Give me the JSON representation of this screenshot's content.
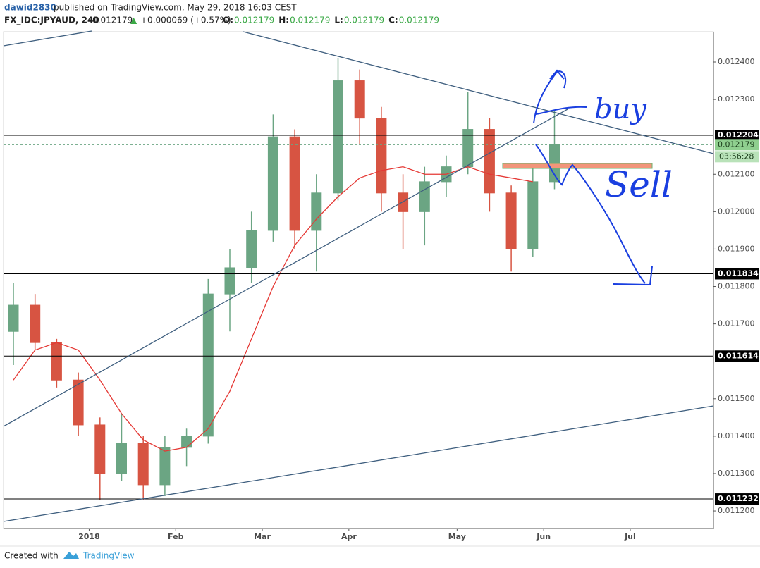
{
  "header": {
    "author": "dawid2830",
    "published": "published on TradingView.com, May 29, 2018 16:03 CEST",
    "symbol": "FX_IDC:JPYAUD, 240",
    "price": "0.012179",
    "arrow": "▲",
    "change": "+0.000069 (+0.57%)",
    "ohlc": [
      {
        "label": "O:",
        "value": "0.012179"
      },
      {
        "label": "H:",
        "value": "0.012179"
      },
      {
        "label": "L:",
        "value": "0.012179"
      },
      {
        "label": "C:",
        "value": "0.012179"
      }
    ]
  },
  "footer": {
    "created": "Created with",
    "brand": "TradingView"
  },
  "chart_data": {
    "type": "candlestick",
    "categories": [
      null,
      null,
      null,
      null,
      "2018",
      null,
      null,
      null,
      "Feb",
      null,
      null,
      null,
      "Mar",
      null,
      null,
      null,
      "Apr",
      null,
      null,
      null,
      null,
      "May",
      null,
      null,
      null,
      "Jun",
      null,
      null,
      null,
      "Jul",
      null,
      null
    ],
    "open": [
      0.01168,
      0.01175,
      0.01165,
      0.01155,
      0.01143,
      0.0113,
      0.01138,
      0.01127,
      0.01137,
      0.0114,
      0.01178,
      0.01185,
      0.01195,
      0.0122,
      0.01195,
      0.01205,
      0.01235,
      0.01225,
      0.01205,
      0.012,
      0.01208,
      0.01212,
      0.01222,
      0.01205,
      0.0119,
      0.01208,
      null,
      null,
      null,
      null,
      null,
      null
    ],
    "high": [
      0.01181,
      0.01178,
      0.01166,
      0.01157,
      0.01145,
      0.01146,
      0.0114,
      0.0114,
      0.01142,
      0.01182,
      0.0119,
      0.012,
      0.01226,
      0.01222,
      0.0121,
      0.01241,
      0.01238,
      0.01228,
      0.0121,
      0.01212,
      0.01215,
      0.01232,
      0.01225,
      0.01207,
      0.01213,
      0.01227,
      null,
      null,
      null,
      null,
      null,
      null
    ],
    "low": [
      0.01159,
      0.01163,
      0.01153,
      0.0114,
      0.01123,
      0.01128,
      0.01123,
      0.01124,
      0.01132,
      0.01138,
      0.01168,
      0.01181,
      0.01192,
      0.0119,
      0.01184,
      0.01203,
      0.01218,
      0.012,
      0.0119,
      0.01191,
      0.01204,
      0.0121,
      0.012,
      0.01184,
      0.01188,
      0.01206,
      null,
      null,
      null,
      null,
      null,
      null
    ],
    "close": [
      0.01175,
      0.01165,
      0.01155,
      0.01143,
      0.0113,
      0.01138,
      0.01127,
      0.01137,
      0.0114,
      0.01178,
      0.01185,
      0.01195,
      0.0122,
      0.01195,
      0.01205,
      0.01235,
      0.01225,
      0.01205,
      0.012,
      0.01208,
      0.01212,
      0.01222,
      0.01205,
      0.0119,
      0.01208,
      0.012179,
      null,
      null,
      null,
      null,
      null,
      null
    ],
    "moving_average": {
      "color": "#e53935",
      "values": [
        0.01155,
        0.01163,
        0.01165,
        0.01163,
        0.01155,
        0.01146,
        0.01139,
        0.01136,
        0.01137,
        0.01142,
        0.01152,
        0.01166,
        0.0118,
        0.01191,
        0.01198,
        0.01204,
        0.01209,
        0.01211,
        0.01212,
        0.0121,
        0.0121,
        0.01212,
        0.0121,
        0.01209,
        0.01208,
        null,
        null,
        null,
        null,
        null,
        null,
        null
      ]
    },
    "up_color": "#6ba583",
    "down_color": "#d75442",
    "ylim": [
      0.011153,
      0.012481
    ],
    "yticks": [
      {
        "value": 0.0112,
        "label": "0.011200"
      },
      {
        "value": 0.0113,
        "label": "0.011300"
      },
      {
        "value": 0.0114,
        "label": "0.011400"
      },
      {
        "value": 0.0115,
        "label": "0.011500"
      },
      {
        "value": 0.0117,
        "label": "0.011700"
      },
      {
        "value": 0.0118,
        "label": "0.011800"
      },
      {
        "value": 0.0119,
        "label": "0.011900"
      },
      {
        "value": 0.012,
        "label": "0.012000"
      },
      {
        "value": 0.0121,
        "label": "0.012100"
      },
      {
        "value": 0.0123,
        "label": "0.012300"
      },
      {
        "value": 0.0124,
        "label": "0.012400"
      }
    ],
    "horizontal_lines": [
      0.012204,
      0.011834,
      0.011614,
      0.011232
    ],
    "last_price": 0.012179,
    "countdown": "03:56:28",
    "annotations": [
      "buy",
      "Sell"
    ]
  }
}
